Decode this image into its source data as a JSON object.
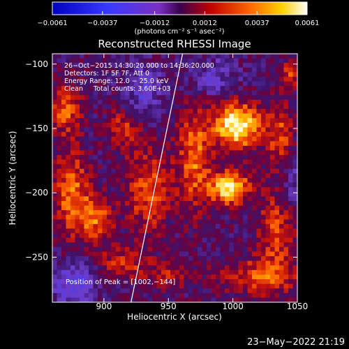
{
  "chart_data": {
    "type": "heatmap",
    "title": "Reconstructed RHESSI Image",
    "xlabel": "Heliocentric X (arcsec)",
    "ylabel": "Heliocentric Y (arcsec)",
    "xlim": [
      860,
      1050
    ],
    "ylim": [
      -285,
      -92
    ],
    "x_ticks": [
      900,
      950,
      1000,
      1050
    ],
    "y_ticks": [
      -100,
      -150,
      -200,
      -250
    ],
    "x_tick_labels": [
      "900",
      "950",
      "1000",
      "1050"
    ],
    "y_tick_labels": [
      "−100",
      "−150",
      "−200",
      "−250"
    ],
    "colorbar": {
      "range": [
        -0.0061,
        0.0061
      ],
      "tick_values": [
        -0.0061,
        -0.0037,
        -0.0012,
        0.0012,
        0.0037,
        0.0061
      ],
      "tick_labels": [
        "−0.0061",
        "−0.0037",
        "−0.0012",
        "0.0012",
        "0.0037",
        "0.0061"
      ],
      "units_label": "(photons cm⁻² s⁻¹ asec⁻²)"
    },
    "annotations": [
      "26−Oct−2015 14:30:20.000 to 14:36:20.000",
      "Detectors: 1F 5F 7F, Att 0",
      "Energy Range: 12.0 − 25.0 keV",
      "Clean     Total counts: 3.60E+03"
    ],
    "peak_label": "Position of Peak = [1002,−144]",
    "peak_position": [
      1002,
      -144
    ],
    "limb_line": [
      [
        921,
        -285
      ],
      [
        961,
        -92
      ]
    ],
    "sources": [
      {
        "x": 1003,
        "y": -148,
        "sigma": [
          13,
          12
        ],
        "amp": 1.0
      },
      {
        "x": 997,
        "y": -196,
        "sigma": [
          11,
          9
        ],
        "amp": 0.88
      },
      {
        "x": 970,
        "y": -172,
        "sigma": [
          9,
          28
        ],
        "amp": 0.55
      },
      {
        "x": 1037,
        "y": -160,
        "sigma": [
          7,
          20
        ],
        "amp": 0.45
      },
      {
        "x": 1033,
        "y": -228,
        "sigma": [
          10,
          24
        ],
        "amp": 0.42
      },
      {
        "x": 935,
        "y": -198,
        "sigma": [
          12,
          22
        ],
        "amp": 0.5
      },
      {
        "x": 875,
        "y": -200,
        "sigma": [
          10,
          22
        ],
        "amp": 0.55
      },
      {
        "x": 893,
        "y": -220,
        "sigma": [
          10,
          12
        ],
        "amp": 0.5
      },
      {
        "x": 870,
        "y": -135,
        "sigma": [
          9,
          14
        ],
        "amp": 0.5
      },
      {
        "x": 915,
        "y": -150,
        "sigma": [
          9,
          12
        ],
        "amp": 0.35
      },
      {
        "x": 1020,
        "y": -265,
        "sigma": [
          22,
          10
        ],
        "amp": 0.42
      },
      {
        "x": 915,
        "y": -255,
        "sigma": [
          14,
          9
        ],
        "amp": 0.38
      },
      {
        "x": 950,
        "y": -265,
        "sigma": [
          12,
          8
        ],
        "amp": 0.3
      },
      {
        "x": 1045,
        "y": -108,
        "sigma": [
          6,
          8
        ],
        "amp": 0.4
      }
    ],
    "grid": false
  },
  "footer": {
    "date": "23−May−2022 21:19"
  }
}
